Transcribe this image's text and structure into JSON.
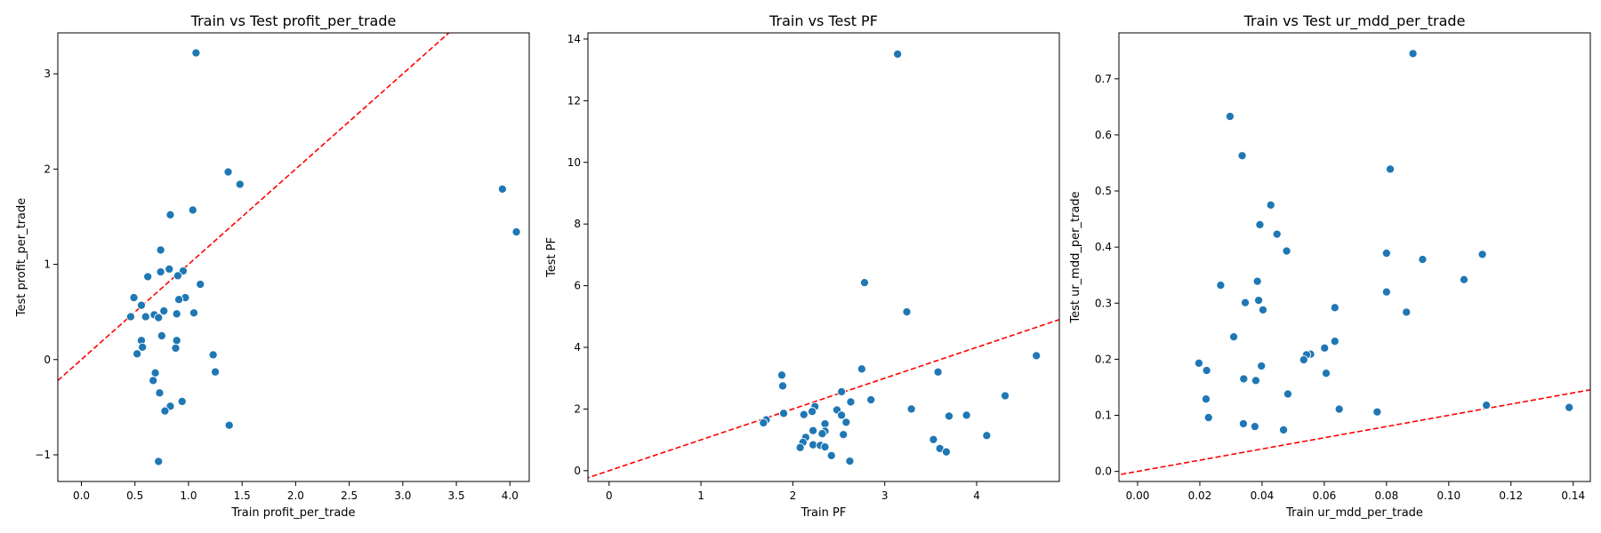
{
  "chart_data": [
    {
      "type": "scatter",
      "title": "Train vs Test profit_per_trade",
      "xlabel": "Train profit_per_trade",
      "ylabel": "Test profit_per_trade",
      "xlim": [
        -0.22,
        4.18
      ],
      "ylim": [
        -1.28,
        3.43
      ],
      "xticks": [
        0.0,
        0.5,
        1.0,
        1.5,
        2.0,
        2.5,
        3.0,
        3.5,
        4.0
      ],
      "xtick_labels": [
        "0.0",
        "0.5",
        "1.0",
        "1.5",
        "2.0",
        "2.5",
        "3.0",
        "3.5",
        "4.0"
      ],
      "yticks": [
        -1,
        0,
        1,
        2,
        3
      ],
      "ytick_labels": [
        "−1",
        "0",
        "1",
        "2",
        "3"
      ],
      "reference_line": "y = x",
      "grid": false,
      "points": [
        [
          1.07,
          3.22
        ],
        [
          1.37,
          1.97
        ],
        [
          1.48,
          1.84
        ],
        [
          3.93,
          1.79
        ],
        [
          4.06,
          1.34
        ],
        [
          1.04,
          1.57
        ],
        [
          0.83,
          1.52
        ],
        [
          0.74,
          1.15
        ],
        [
          0.82,
          0.95
        ],
        [
          0.74,
          0.92
        ],
        [
          0.95,
          0.93
        ],
        [
          0.62,
          0.87
        ],
        [
          0.9,
          0.88
        ],
        [
          1.11,
          0.79
        ],
        [
          0.49,
          0.65
        ],
        [
          0.97,
          0.65
        ],
        [
          0.91,
          0.63
        ],
        [
          0.56,
          0.57
        ],
        [
          0.77,
          0.51
        ],
        [
          1.05,
          0.49
        ],
        [
          0.89,
          0.48
        ],
        [
          0.68,
          0.47
        ],
        [
          0.46,
          0.45
        ],
        [
          0.6,
          0.45
        ],
        [
          0.72,
          0.44
        ],
        [
          0.75,
          0.25
        ],
        [
          0.56,
          0.2
        ],
        [
          0.89,
          0.2
        ],
        [
          0.57,
          0.13
        ],
        [
          0.88,
          0.12
        ],
        [
          0.52,
          0.06
        ],
        [
          1.23,
          0.05
        ],
        [
          0.69,
          -0.14
        ],
        [
          1.25,
          -0.13
        ],
        [
          0.67,
          -0.22
        ],
        [
          0.73,
          -0.35
        ],
        [
          0.94,
          -0.44
        ],
        [
          0.83,
          -0.49
        ],
        [
          0.78,
          -0.54
        ],
        [
          1.38,
          -0.69
        ],
        [
          0.72,
          -1.07
        ]
      ]
    },
    {
      "type": "scatter",
      "title": "Train vs Test PF",
      "xlabel": "Train PF",
      "ylabel": "Test PF",
      "xlim": [
        -0.23,
        4.9
      ],
      "ylim": [
        -0.35,
        14.2
      ],
      "xticks": [
        0,
        1,
        2,
        3,
        4
      ],
      "xtick_labels": [
        "0",
        "1",
        "2",
        "3",
        "4"
      ],
      "yticks": [
        0,
        2,
        4,
        6,
        8,
        10,
        12,
        14
      ],
      "ytick_labels": [
        "0",
        "2",
        "4",
        "6",
        "8",
        "10",
        "12",
        "14"
      ],
      "reference_line": "y = x",
      "grid": false,
      "points": [
        [
          3.14,
          13.51
        ],
        [
          2.78,
          6.1
        ],
        [
          3.24,
          5.15
        ],
        [
          4.65,
          3.73
        ],
        [
          2.75,
          3.3
        ],
        [
          1.88,
          3.1
        ],
        [
          3.58,
          3.2
        ],
        [
          1.89,
          2.75
        ],
        [
          2.53,
          2.56
        ],
        [
          4.31,
          2.43
        ],
        [
          2.85,
          2.3
        ],
        [
          2.63,
          2.23
        ],
        [
          2.24,
          2.08
        ],
        [
          3.29,
          2.0
        ],
        [
          2.48,
          1.97
        ],
        [
          2.21,
          1.92
        ],
        [
          1.9,
          1.86
        ],
        [
          2.12,
          1.82
        ],
        [
          2.53,
          1.8
        ],
        [
          3.89,
          1.8
        ],
        [
          3.7,
          1.77
        ],
        [
          1.71,
          1.65
        ],
        [
          1.68,
          1.55
        ],
        [
          2.58,
          1.57
        ],
        [
          2.35,
          1.52
        ],
        [
          2.22,
          1.3
        ],
        [
          2.35,
          1.28
        ],
        [
          2.32,
          1.2
        ],
        [
          2.55,
          1.17
        ],
        [
          4.11,
          1.14
        ],
        [
          2.14,
          1.08
        ],
        [
          3.53,
          1.01
        ],
        [
          2.11,
          0.92
        ],
        [
          2.22,
          0.84
        ],
        [
          2.3,
          0.82
        ],
        [
          2.35,
          0.77
        ],
        [
          2.08,
          0.75
        ],
        [
          3.6,
          0.72
        ],
        [
          3.67,
          0.61
        ],
        [
          2.42,
          0.49
        ],
        [
          2.62,
          0.31
        ]
      ]
    },
    {
      "type": "scatter",
      "title": "Train vs Test ur_mdd_per_trade",
      "xlabel": "Train ur_mdd_per_trade",
      "ylabel": "Test ur_mdd_per_trade",
      "xlim": [
        -0.006,
        0.1455
      ],
      "ylim": [
        -0.018,
        0.782
      ],
      "xticks": [
        0.0,
        0.02,
        0.04,
        0.06,
        0.08,
        0.1,
        0.12,
        0.14
      ],
      "xtick_labels": [
        "0.00",
        "0.02",
        "0.04",
        "0.06",
        "0.08",
        "0.10",
        "0.12",
        "0.14"
      ],
      "yticks": [
        0.0,
        0.1,
        0.2,
        0.3,
        0.4,
        0.5,
        0.6,
        0.7
      ],
      "ytick_labels": [
        "0.0",
        "0.1",
        "0.2",
        "0.3",
        "0.4",
        "0.5",
        "0.6",
        "0.7"
      ],
      "reference_line": "y = x",
      "grid": false,
      "points": [
        [
          0.0885,
          0.745
        ],
        [
          0.0297,
          0.633
        ],
        [
          0.0336,
          0.563
        ],
        [
          0.0812,
          0.539
        ],
        [
          0.0428,
          0.475
        ],
        [
          0.0393,
          0.44
        ],
        [
          0.0448,
          0.423
        ],
        [
          0.0479,
          0.393
        ],
        [
          0.08,
          0.389
        ],
        [
          0.1108,
          0.387
        ],
        [
          0.0916,
          0.378
        ],
        [
          0.1049,
          0.342
        ],
        [
          0.0385,
          0.339
        ],
        [
          0.0267,
          0.332
        ],
        [
          0.08,
          0.32
        ],
        [
          0.0389,
          0.305
        ],
        [
          0.0346,
          0.301
        ],
        [
          0.0634,
          0.292
        ],
        [
          0.0403,
          0.288
        ],
        [
          0.0864,
          0.284
        ],
        [
          0.0309,
          0.24
        ],
        [
          0.0634,
          0.232
        ],
        [
          0.0601,
          0.22
        ],
        [
          0.0556,
          0.209
        ],
        [
          0.0543,
          0.208
        ],
        [
          0.0534,
          0.199
        ],
        [
          0.0197,
          0.193
        ],
        [
          0.0398,
          0.188
        ],
        [
          0.0222,
          0.18
        ],
        [
          0.0606,
          0.175
        ],
        [
          0.0341,
          0.165
        ],
        [
          0.038,
          0.162
        ],
        [
          0.0483,
          0.138
        ],
        [
          0.022,
          0.129
        ],
        [
          0.1121,
          0.118
        ],
        [
          0.1387,
          0.114
        ],
        [
          0.0648,
          0.111
        ],
        [
          0.077,
          0.106
        ],
        [
          0.0228,
          0.096
        ],
        [
          0.034,
          0.085
        ],
        [
          0.0377,
          0.08
        ],
        [
          0.0469,
          0.074
        ]
      ]
    }
  ]
}
